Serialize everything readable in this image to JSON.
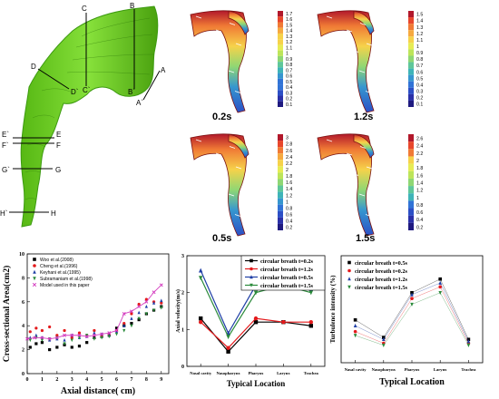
{
  "figure": {
    "airway_section_labels": [
      {
        "id": "C",
        "text": "C"
      },
      {
        "id": "Cp",
        "text": "C`"
      },
      {
        "id": "B",
        "text": "B"
      },
      {
        "id": "Bp",
        "text": "B`"
      },
      {
        "id": "A",
        "text": "A"
      },
      {
        "id": "Ap",
        "text": "A`"
      },
      {
        "id": "D",
        "text": "D"
      },
      {
        "id": "Dp",
        "text": "D`"
      },
      {
        "id": "E",
        "text": "E"
      },
      {
        "id": "Ep",
        "text": "E`"
      },
      {
        "id": "F",
        "text": "F"
      },
      {
        "id": "Fp",
        "text": "F`"
      },
      {
        "id": "G",
        "text": "G"
      },
      {
        "id": "Gp",
        "text": "G`"
      },
      {
        "id": "H",
        "text": "H"
      },
      {
        "id": "Hp",
        "text": "H`"
      }
    ],
    "contour_panels": [
      {
        "time": "0.2s",
        "ticks": [
          "1.7",
          "1.6",
          "1.5",
          "1.4",
          "1.3",
          "1.2",
          "1.1",
          "1",
          "0.9",
          "0.8",
          "0.7",
          "0.6",
          "0.5",
          "0.4",
          "0.3",
          "0.2",
          "0.1"
        ]
      },
      {
        "time": "1.2s",
        "ticks": [
          "1.5",
          "1.4",
          "1.3",
          "1.2",
          "1.1",
          "1",
          "0.9",
          "0.8",
          "0.7",
          "0.6",
          "0.5",
          "0.4",
          "0.3",
          "0.2",
          "0.1"
        ]
      },
      {
        "time": "0.5s",
        "ticks": [
          "3",
          "2.8",
          "2.6",
          "2.4",
          "2.2",
          "2",
          "1.8",
          "1.6",
          "1.4",
          "1.2",
          "1",
          "0.8",
          "0.6",
          "0.4",
          "0.2"
        ]
      },
      {
        "time": "1.5s",
        "ticks": [
          "2.6",
          "2.4",
          "2.2",
          "2",
          "1.8",
          "1.6",
          "1.4",
          "1.2",
          "1",
          "0.8",
          "0.6",
          "0.4",
          "0.2"
        ]
      }
    ],
    "colormap": [
      "#b2182b",
      "#e8472c",
      "#f07a35",
      "#f6a93f",
      "#f6d24a",
      "#e7ec54",
      "#bde55a",
      "#8fd774",
      "#5fc79a",
      "#3fb4b8",
      "#3696cf",
      "#3173d6",
      "#2c4fc6",
      "#2a30a8",
      "#1f1a80"
    ],
    "colors": {
      "airway_green": "#6fd021",
      "airway_dark": "#3c9a10"
    }
  },
  "chart_data": [
    {
      "type": "scatter",
      "title": "",
      "xlabel": "Axial distance( cm)",
      "ylabel": "Cross-sectional Area(cm2)",
      "xlim": [
        0,
        9.5
      ],
      "ylim": [
        0,
        10
      ],
      "xticks": [
        "0",
        "1",
        "2",
        "3",
        "4",
        "5",
        "6",
        "7",
        "8",
        "9"
      ],
      "yticks": [
        "0",
        "2",
        "4",
        "6",
        "8",
        "10"
      ],
      "legend_position": "top-left",
      "series": [
        {
          "name": "Woo et al.(2008)",
          "color": "#000000",
          "marker": "square",
          "x": [
            0.2,
            0.6,
            1.0,
            1.5,
            2.0,
            2.5,
            3.0,
            3.5,
            4.0,
            4.5,
            5.0,
            5.5,
            6.0,
            6.5,
            7.0,
            7.5,
            8.0,
            8.5,
            9.0
          ],
          "y": [
            2.2,
            2.5,
            2.6,
            2.0,
            2.2,
            2.4,
            2.2,
            2.3,
            2.6,
            3.0,
            3.1,
            3.2,
            3.8,
            4.0,
            4.2,
            4.5,
            5.0,
            5.3,
            5.6
          ]
        },
        {
          "name": "Cheng et al.(1996)",
          "color": "#e41a1c",
          "marker": "circle",
          "x": [
            0.2,
            0.6,
            1.0,
            1.5,
            2.0,
            2.5,
            3.0,
            3.5,
            4.0,
            4.5,
            5.0,
            5.5,
            6.0,
            6.5,
            7.0,
            7.5,
            8.0,
            8.5,
            9.0
          ],
          "y": [
            3.5,
            3.8,
            3.6,
            3.9,
            3.2,
            3.6,
            3.0,
            3.4,
            3.2,
            3.6,
            3.2,
            3.3,
            3.6,
            4.2,
            5.0,
            5.8,
            6.2,
            6.0,
            5.9
          ]
        },
        {
          "name": "Keyhani et al.(1995)",
          "color": "#1f3fa6",
          "marker": "triangle",
          "x": [
            0.2,
            0.6,
            1.0,
            1.5,
            2.0,
            2.5,
            3.0,
            3.5,
            4.0,
            4.5,
            5.0,
            5.5,
            6.0,
            6.5,
            7.0,
            7.5,
            8.0,
            8.5,
            9.0
          ],
          "y": [
            3.0,
            3.2,
            3.0,
            2.8,
            2.9,
            2.8,
            3.2,
            3.0,
            3.1,
            3.4,
            3.3,
            3.2,
            3.5,
            4.0,
            4.6,
            5.1,
            5.6,
            5.9,
            6.1
          ]
        },
        {
          "name": "Subramaniam et al.(1998)",
          "color": "#2a8a3a",
          "marker": "triangle-down",
          "x": [
            0.2,
            0.6,
            1.0,
            1.5,
            2.0,
            2.5,
            3.0,
            3.5,
            4.0,
            4.5,
            5.0,
            5.5,
            6.0,
            6.5,
            7.0,
            7.5,
            8.0,
            8.5,
            9.0
          ],
          "y": [
            2.8,
            3.0,
            2.8,
            2.9,
            3.0,
            2.5,
            2.8,
            3.0,
            3.2,
            2.9,
            3.0,
            3.1,
            3.3,
            3.6,
            4.0,
            4.6,
            5.0,
            5.3,
            5.5
          ]
        },
        {
          "name": "Model used in this paper",
          "color": "#d43fc0",
          "marker": "line-x",
          "x": [
            0,
            0.5,
            1.0,
            1.5,
            2.0,
            2.5,
            3.0,
            3.5,
            4.0,
            4.5,
            5.0,
            5.5,
            6.0,
            6.5,
            7.0,
            7.5,
            8.0,
            8.5,
            9.0
          ],
          "y": [
            2.9,
            3.0,
            3.0,
            2.9,
            3.0,
            3.2,
            3.2,
            3.2,
            3.1,
            3.2,
            3.3,
            3.4,
            3.6,
            5.0,
            5.2,
            5.6,
            6.0,
            6.8,
            7.4
          ]
        }
      ]
    },
    {
      "type": "line",
      "title": "",
      "xlabel": "Typical  Location",
      "ylabel": "Axial velocity(m/s)",
      "categories": [
        "Nasal cavity",
        "Nasopharynx",
        "Pharynx",
        "Larynx",
        "Trachea"
      ],
      "ylim": [
        0,
        3
      ],
      "yticks": [
        "0",
        "1",
        "2",
        "3"
      ],
      "legend_position": "top-right",
      "series": [
        {
          "name": "circular breath  t=0.2s",
          "color": "#000000",
          "marker": "square",
          "values": [
            1.3,
            0.4,
            1.2,
            1.2,
            1.1
          ]
        },
        {
          "name": "circular breath  t=1.2s",
          "color": "#e41a1c",
          "marker": "circle",
          "values": [
            1.2,
            0.5,
            1.3,
            1.2,
            1.2
          ]
        },
        {
          "name": "circular breath  t=0.5s",
          "color": "#1f3fa6",
          "marker": "triangle",
          "values": [
            2.6,
            0.9,
            2.2,
            2.2,
            2.1
          ]
        },
        {
          "name": "circular breath  t=1.5s",
          "color": "#2a8a3a",
          "marker": "triangle-down",
          "values": [
            2.4,
            0.8,
            2.0,
            2.2,
            2.0
          ]
        }
      ]
    },
    {
      "type": "line",
      "title": "",
      "xlabel": "Typical  Location",
      "ylabel": "Turbulence intensity (%)",
      "categories": [
        "Nasal cavity",
        "Nasopharynx",
        "Pharynx",
        "Larynx",
        "Trachea"
      ],
      "ylim": [
        0,
        55
      ],
      "legend_position": "top-left",
      "series": [
        {
          "name": "circular breath  t=0.5s",
          "color": "#000000",
          "marker": "square",
          "values": [
            22,
            13,
            36,
            43,
            12
          ]
        },
        {
          "name": "circular breath  t=0.2s",
          "color": "#e41a1c",
          "marker": "circle",
          "values": [
            16,
            10,
            33,
            39,
            10
          ]
        },
        {
          "name": "circular breath  t=1.2s",
          "color": "#1f3fa6",
          "marker": "triangle",
          "values": [
            19,
            12,
            35,
            41,
            11
          ]
        },
        {
          "name": "circular breath  t=1.5s",
          "color": "#2a8a3a",
          "marker": "triangle-down",
          "values": [
            14,
            9,
            30,
            36,
            9
          ]
        }
      ]
    }
  ]
}
